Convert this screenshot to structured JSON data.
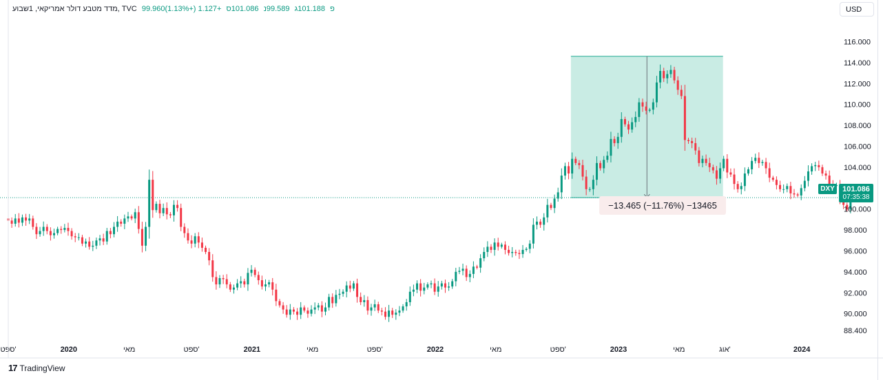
{
  "header": {
    "title": "מדד מטבע דולר אמריקאי, 1שבוע, TVC",
    "open": "99.960פ",
    "high": "101.188ג",
    "low": "99.589נ",
    "close": "101.086ס",
    "change": "+1.127 (+1.13%)"
  },
  "currency_button": "USD",
  "symbol_tag": "DXY",
  "last_price": "101.086",
  "countdown": "07:35:38",
  "measure_label": "−13.465 (−11.76%) −13465",
  "branding": "TradingView",
  "colors": {
    "up": "#089981",
    "down": "#f23645",
    "range_fill": "#c6ebe3",
    "accent": "#2962ff"
  },
  "chart_data": {
    "type": "candlestick",
    "title": "מדד מטבע דולר אמריקאי, 1שבוע, TVC",
    "ylim": [
      87.8,
      117.0
    ],
    "y_ticks": [
      88.4,
      90.0,
      92.0,
      94.0,
      96.0,
      98.0,
      100.0,
      102.0,
      104.0,
      106.0,
      108.0,
      110.0,
      112.0,
      114.0,
      116.0
    ],
    "y_tick_labels": [
      "88.400",
      "90.000",
      "92.000",
      "94.000",
      "96.000",
      "98.000",
      "100.000",
      "102.000",
      "104.000",
      "106.000",
      "108.000",
      "110.000",
      "112.000",
      "114.000",
      "116.000"
    ],
    "x_range": [
      2019.67,
      2024.18
    ],
    "x_ticks": [
      {
        "t": 2019.67,
        "label": "ספט'",
        "bold": false
      },
      {
        "t": 2020.0,
        "label": "2020",
        "bold": true
      },
      {
        "t": 2020.33,
        "label": "מאי",
        "bold": false
      },
      {
        "t": 2020.67,
        "label": "ספט'",
        "bold": false
      },
      {
        "t": 2021.0,
        "label": "2021",
        "bold": true
      },
      {
        "t": 2021.33,
        "label": "מאי",
        "bold": false
      },
      {
        "t": 2021.67,
        "label": "ספט'",
        "bold": false
      },
      {
        "t": 2022.0,
        "label": "2022",
        "bold": true
      },
      {
        "t": 2022.33,
        "label": "מאי",
        "bold": false
      },
      {
        "t": 2022.67,
        "label": "ספט'",
        "bold": false
      },
      {
        "t": 2023.0,
        "label": "2023",
        "bold": true
      },
      {
        "t": 2023.33,
        "label": "מאי",
        "bold": false
      },
      {
        "t": 2023.58,
        "label": "אוג'",
        "bold": false
      },
      {
        "t": 2024.0,
        "label": "2024",
        "bold": true
      }
    ],
    "start": 2019.67,
    "week": 0.01923,
    "closes": [
      98.9,
      98.6,
      99.1,
      98.7,
      99.2,
      98.9,
      99.1,
      98.3,
      97.6,
      97.9,
      98.3,
      97.9,
      97.5,
      97.7,
      98.1,
      98.0,
      98.2,
      97.9,
      97.4,
      97.3,
      97.3,
      96.7,
      96.9,
      96.4,
      96.5,
      97.0,
      97.2,
      96.9,
      97.9,
      97.6,
      98.3,
      98.8,
      98.6,
      99.1,
      99.3,
      99.1,
      99.7,
      98.1,
      96.5,
      98.3,
      102.8,
      99.9,
      100.5,
      99.6,
      100.1,
      99.5,
      99.4,
      100.4,
      100.1,
      98.3,
      97.7,
      97.0,
      96.7,
      97.4,
      96.8,
      96.3,
      95.9,
      95.1,
      93.5,
      92.8,
      93.4,
      93.3,
      92.8,
      92.3,
      92.5,
      92.9,
      93.1,
      92.8,
      93.9,
      94.2,
      93.7,
      93.2,
      92.6,
      92.8,
      93.0,
      92.3,
      91.2,
      90.8,
      90.4,
      89.9,
      90.4,
      90.2,
      89.9,
      90.6,
      90.3,
      90.0,
      90.4,
      90.6,
      90.8,
      90.2,
      90.6,
      91.6,
      91.0,
      91.8,
      91.9,
      92.1,
      92.7,
      92.4,
      92.9,
      91.6,
      91.1,
      91.3,
      90.3,
      90.6,
      90.9,
      90.3,
      90.2,
      89.7,
      90.3,
      89.9,
      90.1,
      90.3,
      90.7,
      91.1,
      92.1,
      92.3,
      92.9,
      92.2,
      92.5,
      92.8,
      92.9,
      92.1,
      92.6,
      92.9,
      92.5,
      92.6,
      93.1,
      94.0,
      94.1,
      94.3,
      93.5,
      93.8,
      94.5,
      94.4,
      95.3,
      95.9,
      96.4,
      96.1,
      96.8,
      96.4,
      96.6,
      96.1,
      95.8,
      95.9,
      95.8,
      95.7,
      96.1,
      96.2,
      96.7,
      98.5,
      98.8,
      98.5,
      99.2,
      100.4,
      100.1,
      101.0,
      101.6,
      103.2,
      104.1,
      103.4,
      104.8,
      104.4,
      104.2,
      103.1,
      101.9,
      101.9,
      102.8,
      104.4,
      103.9,
      104.7,
      105.1,
      106.7,
      106.3,
      106.9,
      108.6,
      108.1,
      107.6,
      108.3,
      108.8,
      110.2,
      109.8,
      109.4,
      109.5,
      110.2,
      112.1,
      113.2,
      112.5,
      112.9,
      113.3,
      112.3,
      111.4,
      110.8,
      106.6,
      106.5,
      106.3,
      105.6,
      104.4,
      104.8,
      104.4,
      104.0,
      103.7,
      102.9,
      103.9,
      104.8,
      103.5,
      103.3,
      102.4,
      101.9,
      102.2,
      103.4,
      103.8,
      104.6,
      104.9,
      104.4,
      104.5,
      103.9,
      103.0,
      102.8,
      102.3,
      101.9,
      101.9,
      102.2,
      101.5,
      101.4,
      101.3,
      102.0,
      102.7,
      103.6,
      104.1,
      104.2,
      104.0,
      103.4,
      103.2,
      102.3,
      102.2,
      102.3,
      101.1,
      100.4,
      99.96,
      101.086
    ],
    "last_candle": {
      "open": 99.96,
      "high": 101.188,
      "low": 99.589,
      "close": 101.086
    },
    "current_price": 101.086,
    "measurement": {
      "from_time": 2022.74,
      "to_time": 2023.57,
      "top_price": 114.6,
      "bottom_price": 101.086,
      "change": -13.465,
      "percent": -11.76,
      "ticks": -13465
    }
  }
}
